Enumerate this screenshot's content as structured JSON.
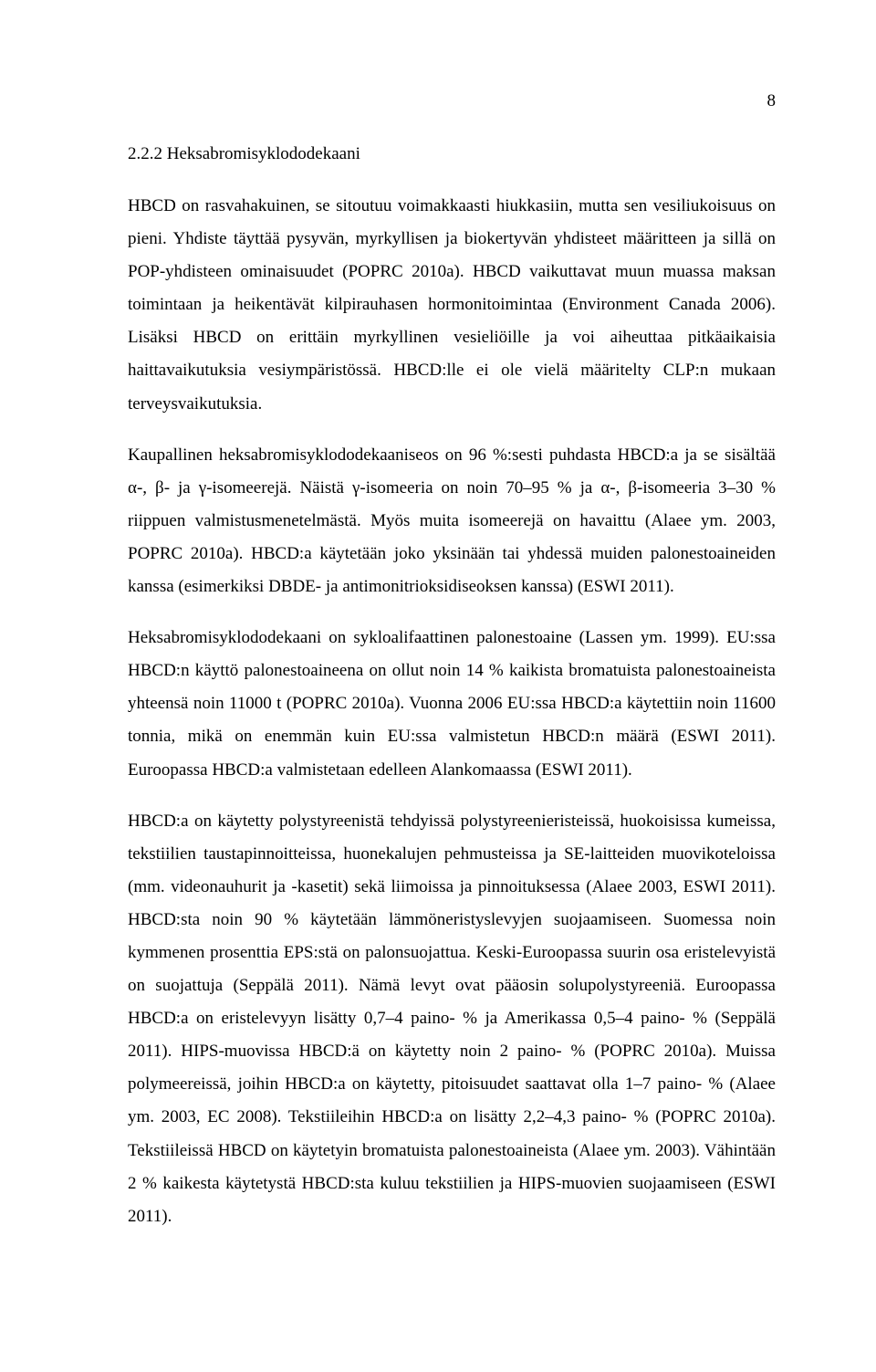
{
  "page_number": "8",
  "heading": "2.2.2 Heksabromisyklododekaani",
  "p1": "HBCD on rasvahakuinen, se sitoutuu voimakkaasti hiukkasiin, mutta sen vesiliukoisuus on pieni. Yhdiste täyttää pysyvän, myrkyllisen ja biokertyvän yhdisteet määritteen ja sillä on POP-yhdisteen ominaisuudet (POPRC 2010a). HBCD vaikuttavat muun muassa maksan toimintaan ja heikentävät kilpirauhasen hormonitoimintaa (Environment Canada 2006). Lisäksi HBCD on erittäin myrkyllinen vesieliöille ja voi aiheuttaa pitkäaikaisia haittavaikutuksia vesiympäristössä. HBCD:lle ei ole vielä määritelty CLP:n mukaan terveysvaikutuksia.",
  "p2": "Kaupallinen heksabromisyklododekaaniseos on 96 %:sesti puhdasta HBCD:a ja se sisältää α-, β- ja γ-isomeerejä. Näistä γ-isomeeria on noin 70–95 % ja α-, β-isomeeria 3–30 % riippuen valmistusmenetelmästä. Myös muita isomeerejä on havaittu (Alaee ym. 2003, POPRC 2010a). HBCD:a käytetään joko yksinään tai yhdessä muiden palonestoaineiden kanssa (esimerkiksi DBDE- ja antimonitrioksidiseoksen kanssa) (ESWI 2011).",
  "p3": "Heksabromisyklododekaani on sykloalifaattinen palonestoaine (Lassen ym. 1999). EU:ssa HBCD:n käyttö palonestoaineena on ollut noin 14 % kaikista bromatuista palonestoaineista yhteensä noin 11000 t (POPRC 2010a). Vuonna 2006 EU:ssa HBCD:a käytettiin noin 11600 tonnia, mikä on enemmän kuin EU:ssa valmistetun HBCD:n määrä (ESWI 2011). Euroopassa HBCD:a valmistetaan edelleen Alankomaassa (ESWI 2011).",
  "p4": "HBCD:a on käytetty polystyreenistä tehdyissä polystyreenieristeissä, huokoisissa kumeissa, tekstiilien taustapinnoitteissa, huonekalujen pehmusteissa ja SE-laitteiden muovikoteloissa (mm. videonauhurit ja -kasetit) sekä liimoissa ja pinnoituksessa (Alaee 2003, ESWI 2011). HBCD:sta noin 90 % käytetään lämmöneristyslevyjen suojaamiseen. Suomessa noin kymmenen prosenttia EPS:stä on palonsuojattua. Keski-Euroopassa suurin osa eristelevyistä on suojattuja (Seppälä 2011). Nämä levyt ovat pääosin solupolystyreeniä. Euroopassa HBCD:a on eristelevyyn lisätty 0,7–4 paino- % ja Amerikassa 0,5–4 paino- % (Seppälä 2011). HIPS-muovissa HBCD:ä on käytetty noin 2 paino- % (POPRC 2010a). Muissa polymeereissä, joihin HBCD:a on käytetty, pitoisuudet saattavat olla 1–7 paino- % (Alaee ym. 2003, EC 2008). Tekstiileihin HBCD:a on lisätty 2,2–4,3 paino- % (POPRC 2010a). Tekstiileissä HBCD on käytetyin bromatuista palonestoaineista (Alaee ym. 2003). Vähintään 2 % kaikesta käytetystä HBCD:sta kuluu tekstiilien ja HIPS-muovien suojaamiseen (ESWI 2011)."
}
